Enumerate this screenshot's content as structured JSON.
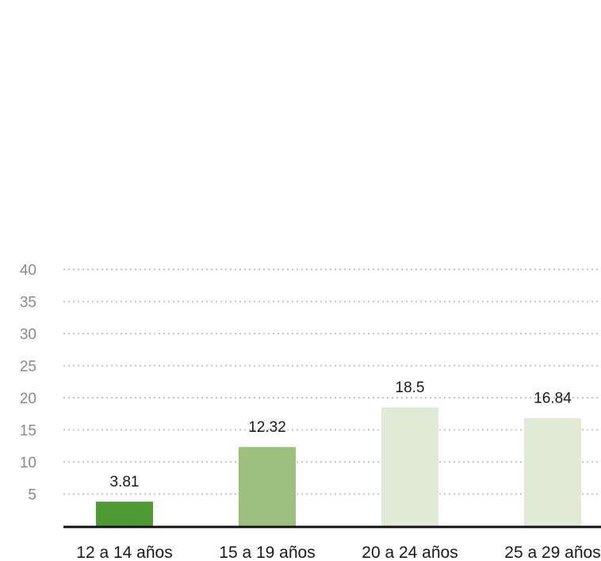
{
  "chart_data": {
    "type": "bar",
    "title": "",
    "xlabel": "",
    "ylabel": "",
    "categories": [
      "12 a 14 años",
      "15 a 19 años",
      "20 a 24 años",
      "25 a 29 años"
    ],
    "values": [
      3.81,
      12.32,
      18.5,
      16.84
    ],
    "value_labels": [
      "3.81",
      "12.32",
      "18.5",
      "16.84"
    ],
    "bar_colors": [
      "#4e9a34",
      "#9cbf7e",
      "#e0ead7",
      "#e0ead7"
    ],
    "ylim": [
      0,
      40
    ],
    "yticks": [
      5,
      10,
      15,
      20,
      25,
      30,
      35,
      40
    ],
    "grid": true,
    "legend": "none"
  }
}
